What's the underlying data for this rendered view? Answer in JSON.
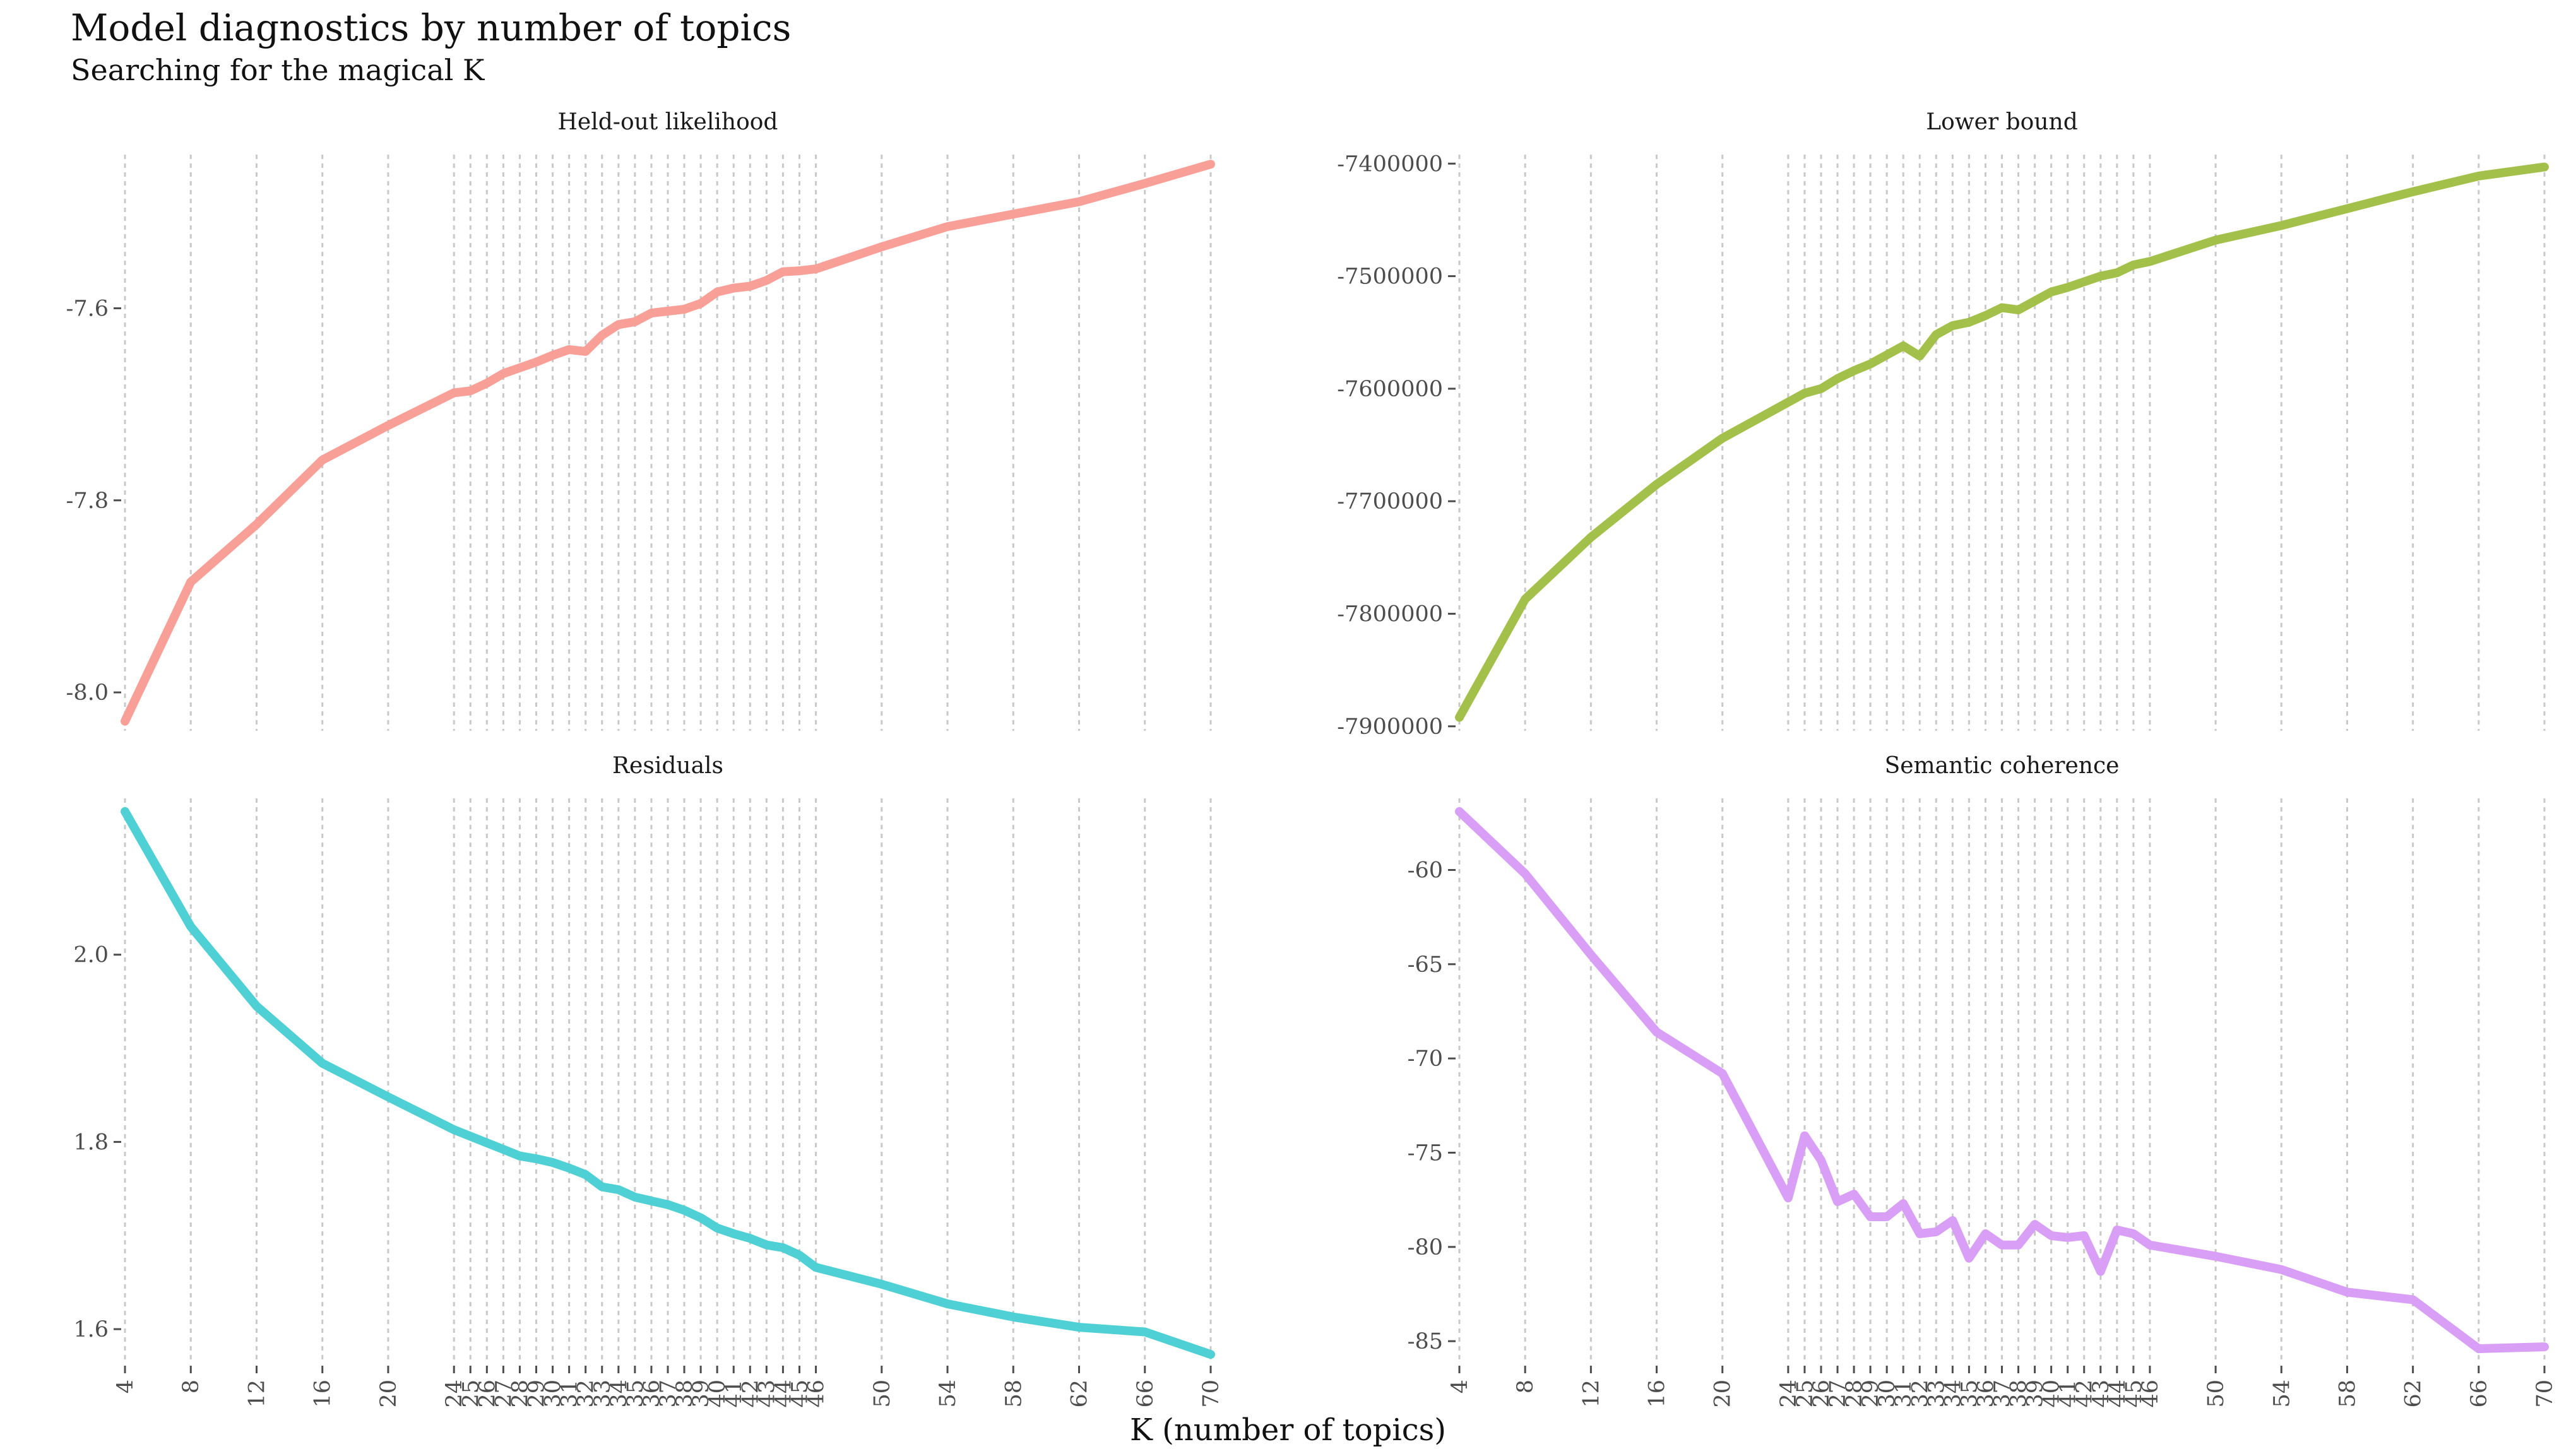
{
  "title": "Model diagnostics by number of topics",
  "subtitle": "Searching for the magical K",
  "xlabel": "K (number of topics)",
  "chart_data": [
    {
      "type": "line",
      "facet": "Held-out likelihood",
      "color": "#F8A097",
      "x": [
        4,
        8,
        12,
        16,
        20,
        24,
        25,
        26,
        27,
        28,
        29,
        30,
        31,
        32,
        33,
        34,
        35,
        36,
        37,
        38,
        39,
        40,
        41,
        42,
        43,
        44,
        45,
        46,
        50,
        54,
        58,
        62,
        66,
        70
      ],
      "y": [
        -8.03,
        -7.885,
        -7.825,
        -7.758,
        -7.722,
        -7.688,
        -7.686,
        -7.678,
        -7.668,
        -7.662,
        -7.656,
        -7.649,
        -7.643,
        -7.645,
        -7.628,
        -7.617,
        -7.614,
        -7.605,
        -7.603,
        -7.601,
        -7.595,
        -7.583,
        -7.579,
        -7.577,
        -7.571,
        -7.562,
        -7.561,
        -7.559,
        -7.536,
        -7.515,
        -7.502,
        -7.489,
        -7.47,
        -7.45
      ],
      "yticks": [
        -8.0,
        -7.8,
        -7.6
      ],
      "ytick_labels": [
        "-8.0",
        "-7.8",
        "-7.6"
      ],
      "ylim": [
        -8.04,
        -7.44
      ]
    },
    {
      "type": "line",
      "facet": "Lower bound",
      "color": "#A3C14A",
      "x": [
        4,
        8,
        12,
        16,
        20,
        24,
        25,
        26,
        27,
        28,
        29,
        30,
        31,
        32,
        33,
        34,
        35,
        36,
        37,
        38,
        39,
        40,
        41,
        42,
        43,
        44,
        45,
        46,
        50,
        54,
        58,
        62,
        66,
        70
      ],
      "y": [
        -7892000,
        -7787000,
        -7732000,
        -7685000,
        -7644000,
        -7612000,
        -7604000,
        -7600000,
        -7591000,
        -7584000,
        -7578000,
        -7570000,
        -7562000,
        -7571000,
        -7552000,
        -7544000,
        -7541000,
        -7535000,
        -7528000,
        -7530000,
        -7522000,
        -7514000,
        -7510000,
        -7505000,
        -7500000,
        -7497000,
        -7490000,
        -7487000,
        -7468000,
        -7455000,
        -7440000,
        -7425000,
        -7411000,
        -7403000
      ],
      "yticks": [
        -7900000,
        -7800000,
        -7700000,
        -7600000,
        -7500000,
        -7400000
      ],
      "ytick_labels": [
        "-7900000",
        "-7800000",
        "-7700000",
        "-7600000",
        "-7500000",
        "-7400000"
      ],
      "ylim": [
        -7904000,
        -7392000
      ]
    },
    {
      "type": "line",
      "facet": "Residuals",
      "color": "#4FD0D4",
      "x": [
        4,
        8,
        12,
        16,
        20,
        24,
        25,
        26,
        27,
        28,
        29,
        30,
        31,
        32,
        33,
        34,
        35,
        36,
        37,
        38,
        39,
        40,
        41,
        42,
        43,
        44,
        45,
        46,
        50,
        54,
        58,
        62,
        66,
        70
      ],
      "y": [
        2.153,
        2.03,
        1.945,
        1.884,
        1.848,
        1.813,
        1.806,
        1.799,
        1.792,
        1.785,
        1.782,
        1.778,
        1.772,
        1.765,
        1.752,
        1.749,
        1.741,
        1.737,
        1.733,
        1.727,
        1.719,
        1.708,
        1.702,
        1.697,
        1.69,
        1.687,
        1.679,
        1.666,
        1.648,
        1.627,
        1.613,
        1.602,
        1.597,
        1.573
      ],
      "yticks": [
        1.6,
        1.8,
        2.0
      ],
      "ytick_labels": [
        "1.6",
        "1.8",
        "2.0"
      ],
      "ylim": [
        1.565,
        2.167
      ]
    },
    {
      "type": "line",
      "facet": "Semantic coherence",
      "color": "#D99EF5",
      "x": [
        4,
        8,
        12,
        16,
        20,
        24,
        25,
        26,
        27,
        28,
        29,
        30,
        31,
        32,
        33,
        34,
        35,
        36,
        37,
        38,
        39,
        40,
        41,
        42,
        43,
        44,
        45,
        46,
        50,
        54,
        58,
        62,
        66,
        70
      ],
      "y": [
        -56.9,
        -60.2,
        -64.5,
        -68.6,
        -70.8,
        -77.4,
        -74.1,
        -75.4,
        -77.6,
        -77.2,
        -78.4,
        -78.4,
        -77.7,
        -79.3,
        -79.2,
        -78.6,
        -80.6,
        -79.3,
        -79.9,
        -79.9,
        -78.8,
        -79.4,
        -79.5,
        -79.4,
        -81.3,
        -79.1,
        -79.3,
        -79.9,
        -80.5,
        -81.2,
        -82.4,
        -82.8,
        -85.4,
        -85.3
      ],
      "yticks": [
        -85,
        -80,
        -75,
        -70,
        -65,
        -60
      ],
      "ytick_labels": [
        "-85",
        "-80",
        "-75",
        "-70",
        "-65",
        "-60"
      ],
      "ylim": [
        -86.1,
        -56.2
      ]
    }
  ],
  "x_axis": {
    "ticks": [
      4,
      8,
      12,
      16,
      20,
      24,
      25,
      26,
      27,
      28,
      29,
      30,
      31,
      32,
      33,
      34,
      35,
      36,
      37,
      38,
      39,
      40,
      41,
      42,
      43,
      44,
      45,
      46,
      50,
      54,
      58,
      62,
      66,
      70
    ],
    "tick_labels": [
      "4",
      "8",
      "12",
      "16",
      "20",
      "24",
      "25",
      "26",
      "27",
      "28",
      "29",
      "30",
      "31",
      "32",
      "33",
      "34",
      "35",
      "36",
      "37",
      "38",
      "39",
      "40",
      "41",
      "42",
      "43",
      "44",
      "45",
      "46",
      "50",
      "54",
      "58",
      "62",
      "66",
      "70"
    ],
    "xlim": [
      4,
      70
    ],
    "grid": "dotted vertical at each tick"
  }
}
